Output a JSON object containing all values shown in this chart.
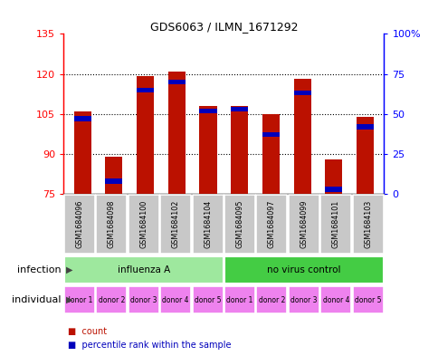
{
  "title": "GDS6063 / ILMN_1671292",
  "samples": [
    "GSM1684096",
    "GSM1684098",
    "GSM1684100",
    "GSM1684102",
    "GSM1684104",
    "GSM1684095",
    "GSM1684097",
    "GSM1684099",
    "GSM1684101",
    "GSM1684103"
  ],
  "red_values": [
    106,
    89,
    119,
    121,
    108,
    108,
    105,
    118,
    88,
    104
  ],
  "blue_values": [
    47,
    8,
    65,
    70,
    52,
    53,
    37,
    63,
    3,
    42
  ],
  "ymin": 75,
  "ymax": 135,
  "yticks": [
    75,
    90,
    105,
    120,
    135
  ],
  "infection_groups": [
    {
      "label": "influenza A",
      "start": 0,
      "end": 5,
      "color": "#9EE89E"
    },
    {
      "label": "no virus control",
      "start": 5,
      "end": 10,
      "color": "#44CC44"
    }
  ],
  "individual_labels": [
    "donor 1",
    "donor 2",
    "donor 3",
    "donor 4",
    "donor 5",
    "donor 1",
    "donor 2",
    "donor 3",
    "donor 4",
    "donor 5"
  ],
  "individual_color": "#EE82EE",
  "sample_bg_color": "#C8C8C8",
  "bar_color": "#BB1100",
  "blue_color": "#0000BB",
  "infection_label": "infection",
  "individual_label": "individual",
  "legend_count": "count",
  "legend_percentile": "percentile rank within the sample"
}
